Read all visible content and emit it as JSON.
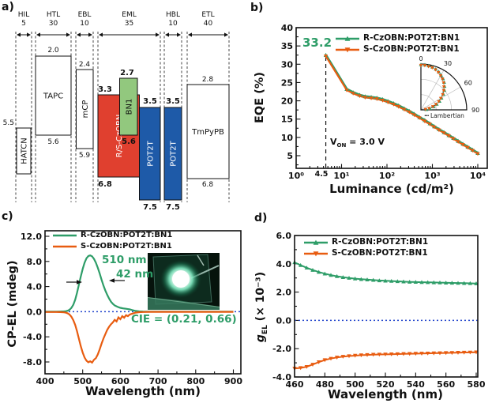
{
  "colors": {
    "green": "#2e9d68",
    "orange": "#e85c10",
    "red_box": "#e0402f",
    "blue_box": "#1e5aa8",
    "green_box": "#92c87e",
    "zero_line": "#2244cc",
    "axis": "#111111"
  },
  "panel_labels": {
    "a": "a)",
    "b": "b)",
    "c": "c)",
    "d": "d)"
  },
  "panel_a": {
    "layers": [
      {
        "name": "HIL",
        "thickness": "5"
      },
      {
        "name": "HTL",
        "thickness": "30"
      },
      {
        "name": "EBL",
        "thickness": "10"
      },
      {
        "name": "EML",
        "thickness": "35"
      },
      {
        "name": "HBL",
        "thickness": "10"
      },
      {
        "name": "ETL",
        "thickness": "40"
      }
    ],
    "materials": [
      {
        "label": "HATCN",
        "lumo": "5.5",
        "homo": ""
      },
      {
        "label": "TAPC",
        "lumo": "2.0",
        "homo": "5.6"
      },
      {
        "label": "mCP",
        "lumo": "2.4",
        "homo": "5.9"
      },
      {
        "label": "R/S-CzOBN",
        "lumo": "3.3",
        "homo": "6.8"
      },
      {
        "label": "BN1",
        "lumo": "2.7",
        "homo": "5.6"
      },
      {
        "label": "POT2T",
        "lumo": "3.5",
        "homo": "7.5"
      },
      {
        "label": "POT2T",
        "lumo": "3.5",
        "homo": "7.5"
      },
      {
        "label": "TmPyPB",
        "lumo": "2.8",
        "homo": "6.8"
      }
    ]
  },
  "chart_data": [
    {
      "id": "eqe_vs_luminance",
      "type": "line",
      "xlabel": "Luminance (cd/m²)",
      "ylabel": "EQE (%)",
      "xscale": "log",
      "xlim": [
        1,
        20000
      ],
      "ylim": [
        2,
        40
      ],
      "xticks": [
        "10⁰",
        "10¹",
        "10²",
        "10³",
        "10⁴"
      ],
      "yticks": [
        5,
        10,
        15,
        20,
        25,
        30,
        35,
        40
      ],
      "annotations": {
        "max_eqe": "33.2",
        "turn_on_luminance": "4.5",
        "von": {
          "sym": "V",
          "sub": "ON",
          "rest": " = 3.0 V"
        }
      },
      "series": [
        {
          "name": "R-CzOBN:POT2T:BN1",
          "color": "green",
          "marker": "up",
          "x": [
            4.5,
            13,
            18,
            25,
            33,
            45,
            60,
            80,
            105,
            140,
            180,
            240,
            310,
            400,
            520,
            680,
            880,
            1100,
            1400,
            1800,
            2300,
            2900,
            3700,
            4700,
            6000,
            7700,
            10000
          ],
          "y": [
            32.5,
            23.2,
            22.3,
            21.6,
            21.2,
            21.0,
            20.8,
            20.4,
            19.9,
            19.3,
            18.7,
            17.9,
            17.2,
            16.4,
            15.5,
            14.7,
            13.8,
            13.0,
            12.2,
            11.4,
            10.6,
            9.8,
            9.0,
            8.2,
            7.4,
            6.6,
            5.7
          ]
        },
        {
          "name": "S-CzOBN:POT2T:BN1",
          "color": "orange",
          "marker": "down",
          "x": [
            4.5,
            13,
            18,
            25,
            33,
            45,
            60,
            80,
            105,
            140,
            180,
            240,
            310,
            400,
            520,
            680,
            880,
            1100,
            1400,
            1800,
            2300,
            2900,
            3700,
            4700,
            6000,
            7700,
            10000
          ],
          "y": [
            32.2,
            22.9,
            22.0,
            21.3,
            20.9,
            20.7,
            20.5,
            20.1,
            19.6,
            19.0,
            18.4,
            17.6,
            16.9,
            16.1,
            15.3,
            14.4,
            13.6,
            12.8,
            12.0,
            11.2,
            10.4,
            9.6,
            8.8,
            8.0,
            7.2,
            6.4,
            5.5
          ]
        }
      ],
      "inset": {
        "type": "polar",
        "angle_ticks": [
          "0",
          "30",
          "60",
          "90"
        ],
        "legend_dots": "···",
        "legend_label": "Lambertian",
        "angles_deg": [
          0,
          5,
          10,
          15,
          20,
          25,
          30,
          35,
          40,
          45,
          50,
          55,
          60,
          65,
          70,
          75,
          80,
          85
        ],
        "r_norm": [
          0.97,
          0.97,
          0.96,
          0.95,
          0.93,
          0.9,
          0.86,
          0.82,
          0.77,
          0.71,
          0.65,
          0.58,
          0.5,
          0.43,
          0.35,
          0.27,
          0.18,
          0.1
        ]
      }
    },
    {
      "id": "cpel_vs_wavelength",
      "type": "line",
      "xlabel": "Wavelength (nm)",
      "ylabel": "CP-EL (mdeg)",
      "xlim": [
        400,
        920
      ],
      "ylim": [
        -10,
        13
      ],
      "xticks": [
        400,
        500,
        600,
        700,
        800,
        900
      ],
      "yticks": [
        "12.0",
        "8.0",
        "4.0",
        "0.0",
        "-4.0",
        "-8.0"
      ],
      "annotations": {
        "peak_wavelength": "510 nm",
        "fwhm": "42 nm",
        "cie": "CIE = (0.21, 0.66)"
      },
      "series": [
        {
          "name": "R-CzOBN:POT2T:BN1",
          "color": "green",
          "marker": "none",
          "x": [
            400,
            410,
            420,
            430,
            440,
            450,
            455,
            460,
            465,
            470,
            475,
            480,
            485,
            490,
            495,
            500,
            505,
            510,
            515,
            520,
            525,
            530,
            535,
            540,
            545,
            550,
            555,
            560,
            565,
            570,
            575,
            580,
            585,
            590,
            595,
            600,
            605,
            610,
            615,
            620,
            625,
            630,
            635,
            640,
            650,
            660,
            680,
            700,
            750,
            800,
            850,
            900
          ],
          "y": [
            0,
            0,
            0,
            0,
            0.02,
            0.05,
            0.08,
            0.15,
            0.3,
            0.6,
            1.1,
            1.9,
            3.0,
            4.3,
            5.6,
            6.8,
            7.8,
            8.5,
            8.85,
            8.95,
            8.8,
            8.4,
            7.8,
            7.0,
            6.1,
            5.1,
            4.2,
            3.4,
            2.7,
            2.1,
            1.6,
            1.25,
            1.0,
            0.85,
            0.72,
            0.62,
            0.55,
            0.5,
            0.46,
            0.42,
            0.36,
            0.28,
            0.2,
            0.12,
            0.05,
            0.02,
            0.01,
            0,
            0,
            0,
            0,
            0
          ]
        },
        {
          "name": "S-CzOBN:POT2T:BN1",
          "color": "orange",
          "marker": "none",
          "x": [
            400,
            410,
            420,
            430,
            440,
            450,
            455,
            460,
            465,
            470,
            475,
            480,
            485,
            490,
            495,
            500,
            505,
            510,
            515,
            520,
            525,
            530,
            535,
            540,
            545,
            550,
            555,
            560,
            565,
            570,
            575,
            580,
            585,
            590,
            595,
            600,
            605,
            610,
            615,
            620,
            625,
            630,
            635,
            640,
            650,
            660,
            680,
            700,
            750,
            800,
            850,
            900
          ],
          "y": [
            -0.05,
            -0.05,
            -0.05,
            -0.05,
            -0.06,
            -0.1,
            -0.15,
            -0.25,
            -0.45,
            -0.8,
            -1.35,
            -2.1,
            -3.1,
            -4.3,
            -5.5,
            -6.5,
            -7.3,
            -7.8,
            -8.05,
            -7.9,
            -8.1,
            -7.65,
            -7.4,
            -6.8,
            -6.0,
            -5.1,
            -4.3,
            -3.6,
            -2.9,
            -2.4,
            -2.0,
            -1.7,
            -1.3,
            -1.55,
            -0.9,
            -1.2,
            -0.7,
            -0.95,
            -0.55,
            -0.7,
            -0.45,
            -0.35,
            -0.25,
            -0.15,
            -0.08,
            -0.05,
            -0.03,
            -0.03,
            -0.03,
            -0.03,
            -0.03,
            -0.03
          ]
        }
      ],
      "zero_line": true
    },
    {
      "id": "gel_vs_wavelength",
      "type": "line",
      "xlabel": "Wavelength (nm)",
      "ylabel": "g_EL (× 10⁻³)",
      "ylabel_parts": {
        "sym": "g",
        "sub": "EL",
        "rest": " (× 10⁻³)"
      },
      "xlim": [
        460,
        581
      ],
      "ylim": [
        -4,
        6
      ],
      "xticks": [
        460,
        480,
        500,
        520,
        540,
        560,
        580
      ],
      "yticks": [
        "6.0",
        "4.0",
        "2.0",
        "0.0",
        "-2.0",
        "-4.0"
      ],
      "series": [
        {
          "name": "R-CzOBN:POT2T:BN1",
          "color": "green",
          "marker": "up",
          "x": [
            460,
            464,
            468,
            472,
            476,
            480,
            484,
            488,
            492,
            496,
            500,
            504,
            508,
            512,
            516,
            520,
            524,
            528,
            532,
            536,
            540,
            544,
            548,
            552,
            556,
            560,
            564,
            568,
            572,
            576,
            580
          ],
          "y": [
            4.1,
            3.9,
            3.72,
            3.56,
            3.42,
            3.3,
            3.2,
            3.12,
            3.05,
            3.0,
            2.95,
            2.91,
            2.88,
            2.85,
            2.82,
            2.8,
            2.78,
            2.76,
            2.74,
            2.72,
            2.71,
            2.7,
            2.69,
            2.68,
            2.67,
            2.66,
            2.65,
            2.64,
            2.63,
            2.62,
            2.61
          ]
        },
        {
          "name": "S-CzOBN:POT2T:BN1",
          "color": "orange",
          "marker": "down",
          "x": [
            460,
            464,
            468,
            472,
            476,
            480,
            484,
            488,
            492,
            496,
            500,
            504,
            508,
            512,
            516,
            520,
            524,
            528,
            532,
            536,
            540,
            544,
            548,
            552,
            556,
            560,
            564,
            568,
            572,
            576,
            580
          ],
          "y": [
            -3.4,
            -3.36,
            -3.28,
            -3.12,
            -2.95,
            -2.8,
            -2.7,
            -2.62,
            -2.56,
            -2.52,
            -2.49,
            -2.46,
            -2.44,
            -2.42,
            -2.41,
            -2.4,
            -2.39,
            -2.38,
            -2.37,
            -2.36,
            -2.35,
            -2.34,
            -2.33,
            -2.32,
            -2.31,
            -2.3,
            -2.29,
            -2.28,
            -2.27,
            -2.26,
            -2.25
          ]
        }
      ],
      "zero_line": true
    }
  ]
}
